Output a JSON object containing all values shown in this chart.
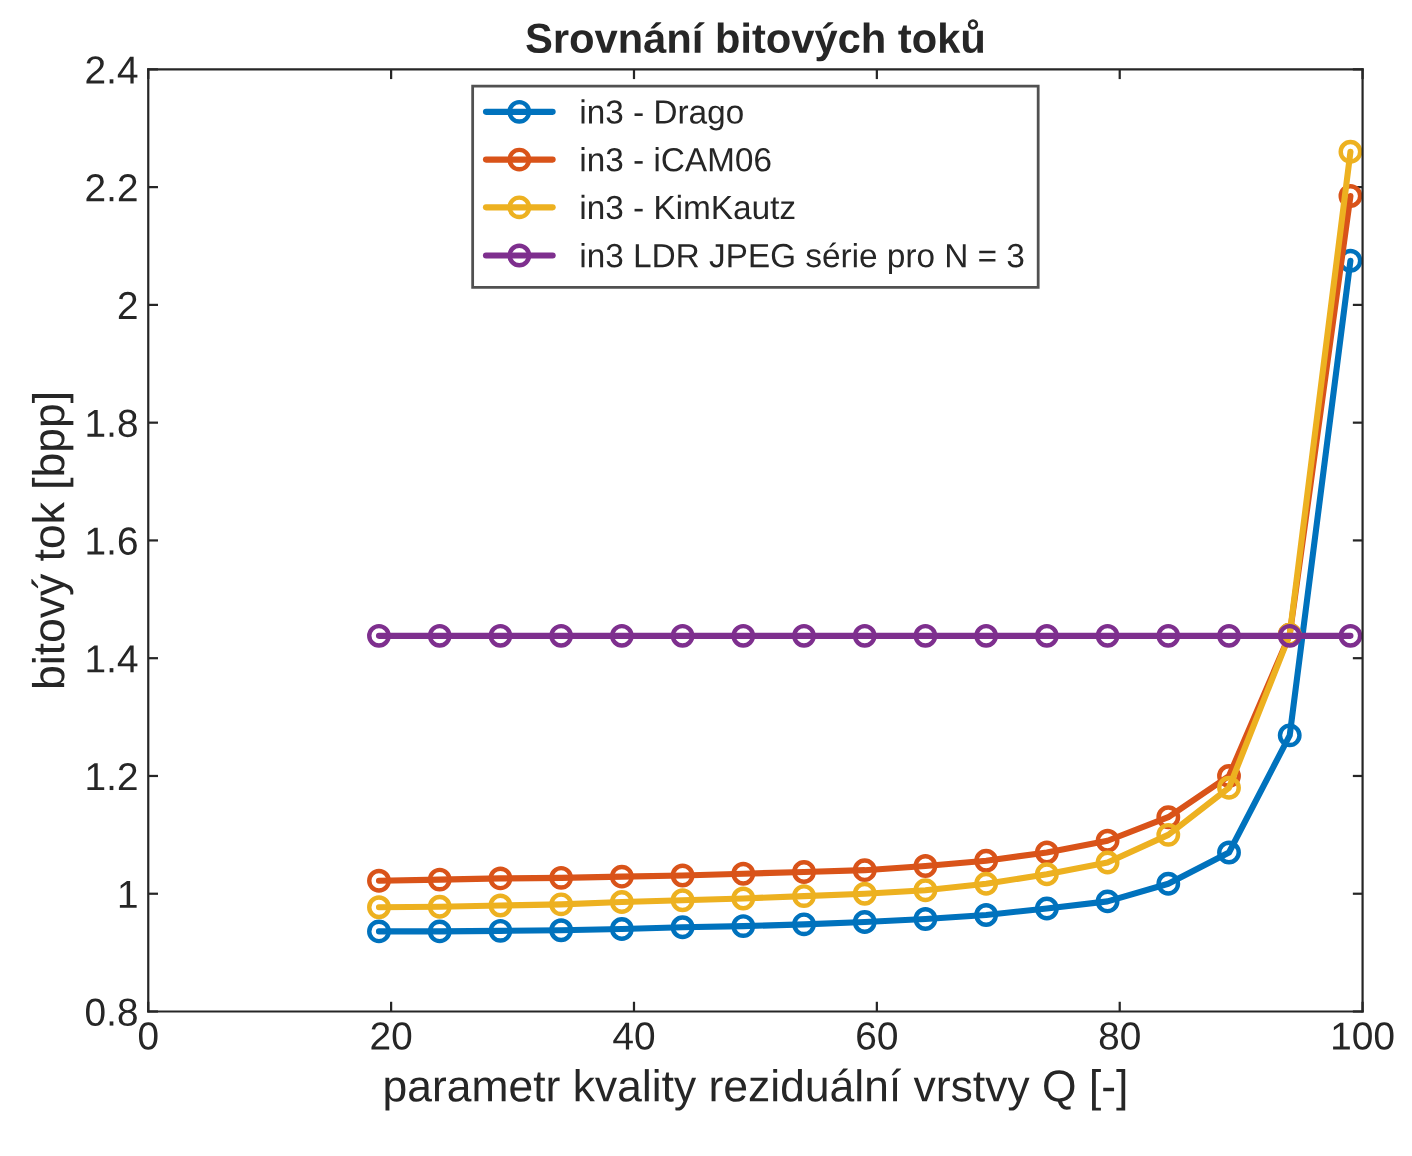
{
  "chart_data": {
    "type": "line",
    "title": "Srovnání bitových toků",
    "xlabel": "parametr kvality reziduální vrstvy Q [-]",
    "ylabel": "bitový tok [bpp]",
    "x": [
      19,
      24,
      29,
      34,
      39,
      44,
      49,
      54,
      59,
      64,
      69,
      74,
      79,
      84,
      89,
      94,
      99
    ],
    "series": [
      {
        "name": "in3 - Drago",
        "color": "#0072bd",
        "values": [
          0.936,
          0.936,
          0.937,
          0.938,
          0.94,
          0.943,
          0.945,
          0.948,
          0.952,
          0.957,
          0.964,
          0.975,
          0.987,
          1.017,
          1.07,
          1.269,
          2.075
        ]
      },
      {
        "name": "in3 - iCAM06",
        "color": "#d95319",
        "values": [
          1.022,
          1.024,
          1.026,
          1.027,
          1.029,
          1.031,
          1.034,
          1.037,
          1.04,
          1.047,
          1.056,
          1.07,
          1.09,
          1.13,
          1.2,
          1.44,
          2.185
        ]
      },
      {
        "name": "in3 - KimKautz",
        "color": "#edb120",
        "values": [
          0.977,
          0.978,
          0.98,
          0.982,
          0.986,
          0.989,
          0.992,
          0.996,
          1.0,
          1.006,
          1.017,
          1.033,
          1.053,
          1.1,
          1.18,
          1.44,
          2.26
        ]
      },
      {
        "name": "in3 LDR JPEG série pro N = 3",
        "color": "#7e2f8e",
        "values": [
          1.438,
          1.438,
          1.438,
          1.438,
          1.438,
          1.438,
          1.438,
          1.438,
          1.438,
          1.438,
          1.438,
          1.438,
          1.438,
          1.438,
          1.438,
          1.438,
          1.438
        ]
      }
    ],
    "xlim": [
      0,
      100
    ],
    "xticks": [
      0,
      20,
      40,
      60,
      80,
      100
    ],
    "ylim": [
      0.8,
      2.4
    ],
    "yticks": [
      0.8,
      1,
      1.2,
      1.4,
      1.6,
      1.8,
      2,
      2.2,
      2.4
    ],
    "marker": "circle",
    "line_style": "solid",
    "legend": "top",
    "grid": false
  }
}
